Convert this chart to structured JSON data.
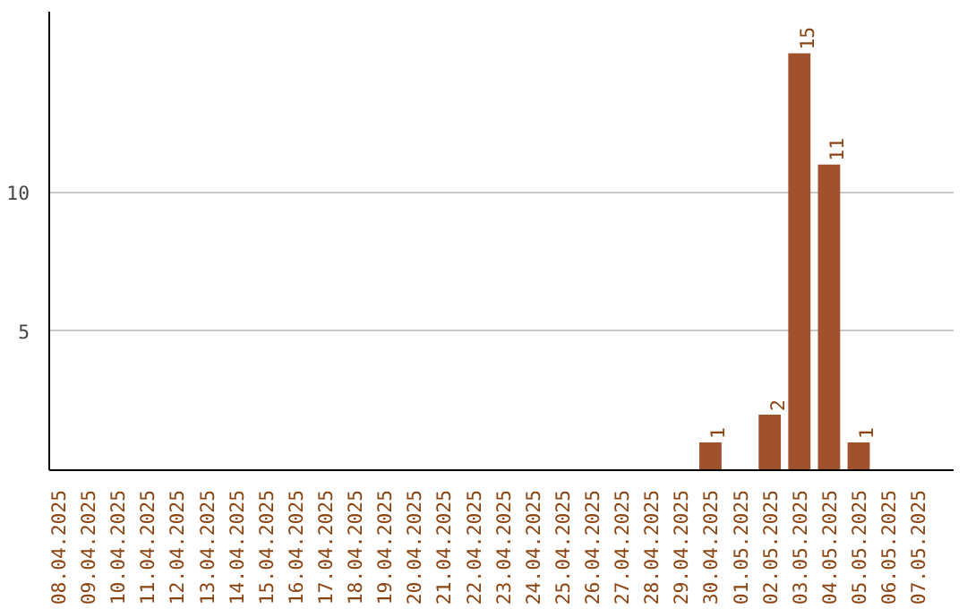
{
  "chart_data": {
    "type": "bar",
    "categories": [
      "08.04.2025",
      "09.04.2025",
      "10.04.2025",
      "11.04.2025",
      "12.04.2025",
      "13.04.2025",
      "14.04.2025",
      "15.04.2025",
      "16.04.2025",
      "17.04.2025",
      "18.04.2025",
      "19.04.2025",
      "20.04.2025",
      "21.04.2025",
      "22.04.2025",
      "23.04.2025",
      "24.04.2025",
      "25.04.2025",
      "26.04.2025",
      "27.04.2025",
      "28.04.2025",
      "29.04.2025",
      "30.04.2025",
      "01.05.2025",
      "02.05.2025",
      "03.05.2025",
      "04.05.2025",
      "05.05.2025",
      "06.05.2025",
      "07.05.2025"
    ],
    "values": [
      0,
      0,
      0,
      0,
      0,
      0,
      0,
      0,
      0,
      0,
      0,
      0,
      0,
      0,
      0,
      0,
      0,
      0,
      0,
      0,
      0,
      0,
      1,
      0,
      2,
      15,
      11,
      1,
      0,
      0
    ],
    "value_labels": [
      null,
      null,
      null,
      null,
      null,
      null,
      null,
      null,
      null,
      null,
      null,
      null,
      null,
      null,
      null,
      null,
      null,
      null,
      null,
      null,
      null,
      null,
      "1",
      null,
      "2",
      "15",
      "11",
      "1",
      null,
      null
    ],
    "color": "#a0522d",
    "ylim": [
      0,
      16.5
    ],
    "yticks": [
      5,
      10
    ],
    "grid": "y"
  }
}
